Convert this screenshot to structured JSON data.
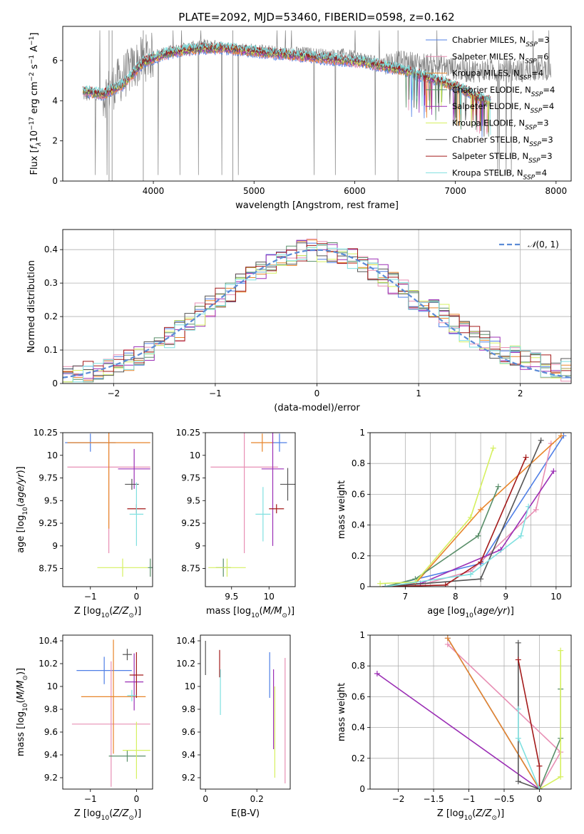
{
  "figure_title": "PLATE=2092, MJD=53460, FIBERID=0598, z=0.162",
  "colors": {
    "chabrier_miles": "#4f7fe6",
    "salpeter_miles": "#e88fb4",
    "kroupa_miles": "#e8852a",
    "chabrier_elodie": "#5a8f6a",
    "salpeter_elodie": "#9b2fb5",
    "kroupa_elodie": "#d6f060",
    "chabrier_stelib": "#555555",
    "salpeter_stelib": "#a31a1a",
    "kroupa_stelib": "#7fe0e0",
    "data": "#808080",
    "normal": "#5b8bd6",
    "grid": "#b0b0b0"
  },
  "chart_data": [
    {
      "id": "spectrum",
      "type": "line",
      "title": "PLATE=2092, MJD=53460, FIBERID=0598, z=0.162",
      "xlabel": "wavelength [Angstrom, rest frame]",
      "ylabel": "Flux [f_λ 10^-17 erg cm^-2 s^-1 A^-1]",
      "xlim": [
        3100,
        8150
      ],
      "ylim": [
        0,
        7.7
      ],
      "xticks": [
        4000,
        5000,
        6000,
        7000,
        8000
      ],
      "yticks": [
        0,
        2,
        4,
        6
      ],
      "grid": false,
      "legend_position": "top-right",
      "legend": [
        "Chabrier MILES, N_SSP=3",
        "Salpeter MILES, N_SSP=6",
        "Kroupa MILES, N_SSP=4",
        "Chabrier ELODIE, N_SSP=4",
        "Salpeter ELODIE, N_SSP=4",
        "Kroupa ELODIE, N_SSP=3",
        "Chabrier STELIB, N_SSP=3",
        "Salpeter STELIB, N_SSP=3",
        "Kroupa STELIB, N_SSP=4"
      ],
      "model_continuum": {
        "x": [
          3300,
          3500,
          3700,
          3900,
          4100,
          4300,
          4500,
          4700,
          4900,
          5100,
          5300,
          5500,
          5700,
          5900,
          6100,
          6300,
          6500,
          6700,
          6900,
          7100,
          7300
        ],
        "y": [
          4.5,
          4.3,
          4.8,
          5.9,
          6.3,
          6.5,
          6.6,
          6.6,
          6.5,
          6.4,
          6.3,
          6.2,
          6.1,
          6.0,
          5.9,
          5.7,
          5.5,
          5.2,
          4.9,
          4.5,
          4.0
        ]
      },
      "data_continuum": {
        "x": [
          3300,
          3500,
          3700,
          3900,
          4100,
          4300,
          4500,
          4700,
          4900,
          5100,
          5300,
          5500,
          5700,
          5900,
          6100,
          6300,
          6500,
          6700,
          6900,
          7100,
          7300,
          7500,
          7700,
          7900
        ],
        "y": [
          4.3,
          4.2,
          5.2,
          6.1,
          6.4,
          6.6,
          6.8,
          6.7,
          6.6,
          6.5,
          6.4,
          6.4,
          6.3,
          6.3,
          6.1,
          5.9,
          5.9,
          5.8,
          5.7,
          5.5,
          5.5,
          5.5,
          5.5,
          5.6
        ]
      }
    },
    {
      "id": "residuals",
      "type": "line",
      "xlabel": "(data-model)/error",
      "ylabel": "Normed distribution",
      "xlim": [
        -2.5,
        2.5
      ],
      "ylim": [
        0,
        0.46
      ],
      "xticks": [
        -2,
        -1,
        0,
        1,
        2
      ],
      "yticks": [
        0.0,
        0.1,
        0.2,
        0.3,
        0.4
      ],
      "grid": true,
      "legend_position": "top-right",
      "legend": [
        "N(0,1)"
      ],
      "normal_curve": {
        "mean": 0,
        "sigma": 1
      },
      "bins": {
        "start": -2.5,
        "width": 0.1
      }
    },
    {
      "id": "age_vs_Z",
      "type": "scatter",
      "xlabel": "Z [log10(Z/Z⊙)]",
      "ylabel": "age [log10(age/yr)]",
      "xlim": [
        -1.6,
        0.35
      ],
      "ylim": [
        8.55,
        10.25
      ],
      "xticks": [
        -1,
        0
      ],
      "yticks": [
        8.75,
        9.0,
        9.25,
        9.5,
        9.75,
        10.0,
        10.25
      ],
      "grid": false,
      "points": [
        {
          "x": -1.0,
          "y": 10.14,
          "xerr": 0.55,
          "yerr": 0.1,
          "c": "chabrier_miles"
        },
        {
          "x": -0.6,
          "y": 9.87,
          "xerr": 0.9,
          "yerr": 0.95,
          "c": "salpeter_miles"
        },
        {
          "x": -0.6,
          "y": 10.14,
          "xerr": 0.9,
          "yerr": 0.95,
          "c": "kroupa_miles"
        },
        {
          "x": 0.3,
          "y": 8.76,
          "xerr": 0.05,
          "yerr": 0.1,
          "c": "chabrier_elodie"
        },
        {
          "x": -0.05,
          "y": 9.85,
          "xerr": 0.35,
          "yerr": 0.22,
          "c": "salpeter_elodie"
        },
        {
          "x": -0.3,
          "y": 8.76,
          "xerr": 0.55,
          "yerr": 0.1,
          "c": "kroupa_elodie"
        },
        {
          "x": -0.1,
          "y": 9.68,
          "xerr": 0.15,
          "yerr": 0.06,
          "c": "chabrier_stelib"
        },
        {
          "x": 0.0,
          "y": 9.41,
          "xerr": 0.2,
          "yerr": 0.05,
          "c": "salpeter_stelib"
        },
        {
          "x": 0.0,
          "y": 9.35,
          "xerr": 0.15,
          "yerr": 0.35,
          "c": "kroupa_stelib"
        }
      ]
    },
    {
      "id": "age_vs_mass",
      "type": "scatter",
      "xlabel": "mass [log10(M/M⊙)]",
      "xlim": [
        9.15,
        10.35
      ],
      "ylim": [
        8.55,
        10.25
      ],
      "xticks": [
        9.5,
        10.0
      ],
      "yticks": [
        8.75,
        9.0,
        9.25,
        9.5,
        9.75,
        10.0,
        10.25
      ],
      "grid": false,
      "points": [
        {
          "x": 10.14,
          "y": 10.14,
          "xerr": 0.1,
          "yerr": 0.1,
          "c": "chabrier_miles"
        },
        {
          "x": 9.67,
          "y": 9.87,
          "xerr": 0.45,
          "yerr": 0.95,
          "c": "salpeter_miles"
        },
        {
          "x": 9.91,
          "y": 10.14,
          "xerr": 0.15,
          "yerr": 0.1,
          "c": "kroupa_miles"
        },
        {
          "x": 9.39,
          "y": 8.76,
          "xerr": 0.1,
          "yerr": 0.1,
          "c": "chabrier_elodie"
        },
        {
          "x": 10.05,
          "y": 9.85,
          "xerr": 0.15,
          "yerr": 0.85,
          "c": "salpeter_elodie"
        },
        {
          "x": 9.44,
          "y": 8.76,
          "xerr": 0.25,
          "yerr": 0.1,
          "c": "kroupa_elodie"
        },
        {
          "x": 10.25,
          "y": 9.68,
          "xerr": 0.1,
          "yerr": 0.18,
          "c": "chabrier_stelib"
        },
        {
          "x": 10.1,
          "y": 9.41,
          "xerr": 0.1,
          "yerr": 0.05,
          "c": "salpeter_stelib"
        },
        {
          "x": 9.92,
          "y": 9.35,
          "xerr": 0.1,
          "yerr": 0.3,
          "c": "kroupa_stelib"
        }
      ]
    },
    {
      "id": "cum_age",
      "type": "line",
      "xlabel": "age [log10(age/yr)]",
      "ylabel": "mass weight",
      "xlim": [
        6.3,
        10.3
      ],
      "ylim": [
        0,
        1.0
      ],
      "xticks": [
        7,
        8,
        9,
        10
      ],
      "yticks": [
        0.0,
        0.2,
        0.4,
        0.6,
        0.8,
        1.0
      ],
      "grid": true,
      "series": [
        {
          "c": "chabrier_miles",
          "x": [
            6.6,
            8.5,
            10.15
          ],
          "y": [
            0.0,
            0.15,
            0.98
          ]
        },
        {
          "c": "salpeter_miles",
          "x": [
            6.6,
            7.4,
            8.3,
            9.6,
            9.9
          ],
          "y": [
            0.0,
            0.02,
            0.1,
            0.5,
            0.93
          ]
        },
        {
          "c": "kroupa_miles",
          "x": [
            6.6,
            7.2,
            8.5,
            10.1
          ],
          "y": [
            0.0,
            0.02,
            0.5,
            0.98
          ]
        },
        {
          "c": "chabrier_elodie",
          "x": [
            6.6,
            7.2,
            8.45,
            8.85
          ],
          "y": [
            0.0,
            0.05,
            0.33,
            0.65
          ]
        },
        {
          "c": "salpeter_elodie",
          "x": [
            6.6,
            7.3,
            8.9,
            9.95
          ],
          "y": [
            0.0,
            0.02,
            0.24,
            0.75
          ]
        },
        {
          "c": "kroupa_elodie",
          "x": [
            6.5,
            7.2,
            8.3,
            8.75
          ],
          "y": [
            0.02,
            0.03,
            0.45,
            0.9
          ]
        },
        {
          "c": "chabrier_stelib",
          "x": [
            6.6,
            8.5,
            9.7
          ],
          "y": [
            0.0,
            0.05,
            0.95
          ]
        },
        {
          "c": "salpeter_stelib",
          "x": [
            6.6,
            7.8,
            8.5,
            9.4
          ],
          "y": [
            0.0,
            0.01,
            0.16,
            0.84
          ]
        },
        {
          "c": "kroupa_stelib",
          "x": [
            6.6,
            8.3,
            9.3,
            9.45
          ],
          "y": [
            0.0,
            0.08,
            0.33,
            0.52
          ]
        }
      ]
    },
    {
      "id": "mass_vs_Z",
      "type": "scatter",
      "xlabel": "Z [log10(Z/Z⊙)]",
      "ylabel": "mass [log10(M/M⊙)]",
      "xlim": [
        -1.6,
        0.35
      ],
      "ylim": [
        9.1,
        10.45
      ],
      "xticks": [
        -1,
        0
      ],
      "yticks": [
        9.2,
        9.4,
        9.6,
        9.8,
        10.0,
        10.2,
        10.4
      ],
      "grid": false,
      "points": [
        {
          "x": -0.7,
          "y": 10.14,
          "xerr": 0.6,
          "yerr": 0.12,
          "c": "chabrier_miles"
        },
        {
          "x": -0.55,
          "y": 9.67,
          "xerr": 0.85,
          "yerr": 0.55,
          "c": "salpeter_miles"
        },
        {
          "x": -0.5,
          "y": 9.91,
          "xerr": 0.7,
          "yerr": 0.5,
          "c": "kroupa_miles"
        },
        {
          "x": -0.2,
          "y": 9.39,
          "xerr": 0.4,
          "yerr": 0.05,
          "c": "chabrier_elodie"
        },
        {
          "x": -0.05,
          "y": 10.04,
          "xerr": 0.2,
          "yerr": 0.25,
          "c": "salpeter_elodie"
        },
        {
          "x": 0.0,
          "y": 9.44,
          "xerr": 0.3,
          "yerr": 0.25,
          "c": "kroupa_elodie"
        },
        {
          "x": -0.2,
          "y": 10.28,
          "xerr": 0.1,
          "yerr": 0.05,
          "c": "chabrier_stelib"
        },
        {
          "x": 0.0,
          "y": 10.1,
          "xerr": 0.15,
          "yerr": 0.2,
          "c": "salpeter_stelib"
        },
        {
          "x": -0.1,
          "y": 9.92,
          "xerr": 0.1,
          "yerr": 0.05,
          "c": "kroupa_stelib"
        }
      ]
    },
    {
      "id": "mass_vs_EBV",
      "type": "scatter",
      "xlabel": "E(B-V)",
      "xlim": [
        -0.02,
        0.33
      ],
      "ylim": [
        9.1,
        10.45
      ],
      "xticks": [
        0.0,
        0.2
      ],
      "yticks": [
        9.2,
        9.4,
        9.6,
        9.8,
        10.0,
        10.2,
        10.4
      ],
      "grid": false,
      "points": [
        {
          "x": 0.0,
          "y": 10.25,
          "yerr": 0.15,
          "c": "chabrier_stelib"
        },
        {
          "x": 0.055,
          "y": 10.2,
          "yerr": 0.12,
          "c": "salpeter_stelib"
        },
        {
          "x": 0.058,
          "y": 9.95,
          "yerr": 0.2,
          "c": "kroupa_stelib"
        },
        {
          "x": 0.25,
          "y": 10.1,
          "yerr": 0.2,
          "c": "chabrier_miles"
        },
        {
          "x": 0.265,
          "y": 9.8,
          "yerr": 0.35,
          "c": "salpeter_elodie"
        },
        {
          "x": 0.27,
          "y": 9.6,
          "yerr": 0.4,
          "c": "kroupa_elodie"
        },
        {
          "x": 0.31,
          "y": 9.7,
          "yerr": 0.55,
          "c": "salpeter_miles"
        }
      ]
    },
    {
      "id": "cum_Z",
      "type": "line",
      "xlabel": "Z [log10(Z/Z⊙)]",
      "ylabel": "mass weight",
      "xlim": [
        -2.4,
        0.45
      ],
      "ylim": [
        0,
        1.0
      ],
      "xticks": [
        -2.0,
        -1.5,
        -1.0,
        -0.5,
        0.0
      ],
      "yticks": [
        0.0,
        0.2,
        0.4,
        0.6,
        0.8,
        1.0
      ],
      "grid": true,
      "series": [
        {
          "c": "chabrier_miles",
          "x": [
            0.0,
            -1.3
          ],
          "y": [
            0.0,
            0.98
          ]
        },
        {
          "c": "salpeter_miles",
          "x": [
            0.0,
            0.3,
            -1.3
          ],
          "y": [
            0.0,
            0.24,
            0.94
          ]
        },
        {
          "c": "kroupa_miles",
          "x": [
            0.0,
            -1.3
          ],
          "y": [
            0.0,
            0.98
          ]
        },
        {
          "c": "chabrier_elodie",
          "x": [
            0.0,
            0.3,
            0.3
          ],
          "y": [
            0.0,
            0.33,
            0.65
          ]
        },
        {
          "c": "salpeter_elodie",
          "x": [
            0.0,
            -2.3
          ],
          "y": [
            0.0,
            0.75
          ]
        },
        {
          "c": "kroupa_elodie",
          "x": [
            0.0,
            0.3,
            0.3
          ],
          "y": [
            0.0,
            0.08,
            0.9
          ]
        },
        {
          "c": "chabrier_stelib",
          "x": [
            0.0,
            -0.3,
            -0.3
          ],
          "y": [
            0.0,
            0.05,
            0.95
          ]
        },
        {
          "c": "salpeter_stelib",
          "x": [
            0.0,
            0.0,
            -0.3
          ],
          "y": [
            0.0,
            0.15,
            0.84
          ]
        },
        {
          "c": "kroupa_stelib",
          "x": [
            0.0,
            -0.3,
            -0.3
          ],
          "y": [
            0.0,
            0.33,
            0.52
          ]
        }
      ]
    }
  ]
}
